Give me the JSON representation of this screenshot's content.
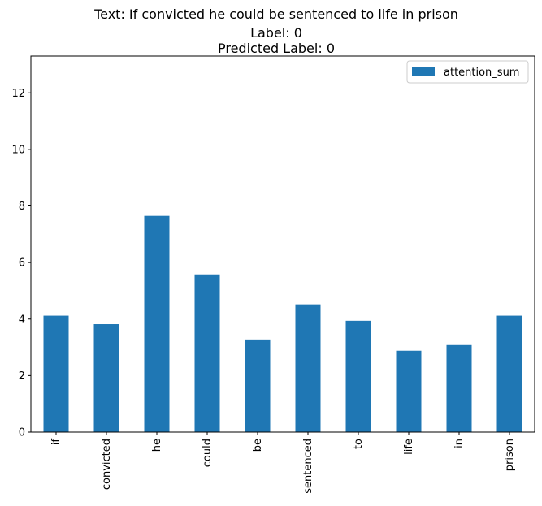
{
  "title": {
    "line1": "Text: If convicted he could be sentenced to life in prison",
    "line2": "Label: 0",
    "line3": "Predicted Label: 0"
  },
  "chart_data": {
    "type": "bar",
    "categories": [
      "if",
      "convicted",
      "he",
      "could",
      "be",
      "sentenced",
      "to",
      "life",
      "in",
      "prison"
    ],
    "series": [
      {
        "name": "attention_sum",
        "color": "#1f77b4",
        "values": [
          4.12,
          3.82,
          7.65,
          5.58,
          3.25,
          4.52,
          3.94,
          2.88,
          3.08,
          4.12
        ]
      }
    ],
    "ylim": [
      0,
      13.3
    ],
    "yticks": [
      0,
      2,
      4,
      6,
      8,
      10,
      12
    ],
    "legend_position": "top-right",
    "grid": false
  }
}
